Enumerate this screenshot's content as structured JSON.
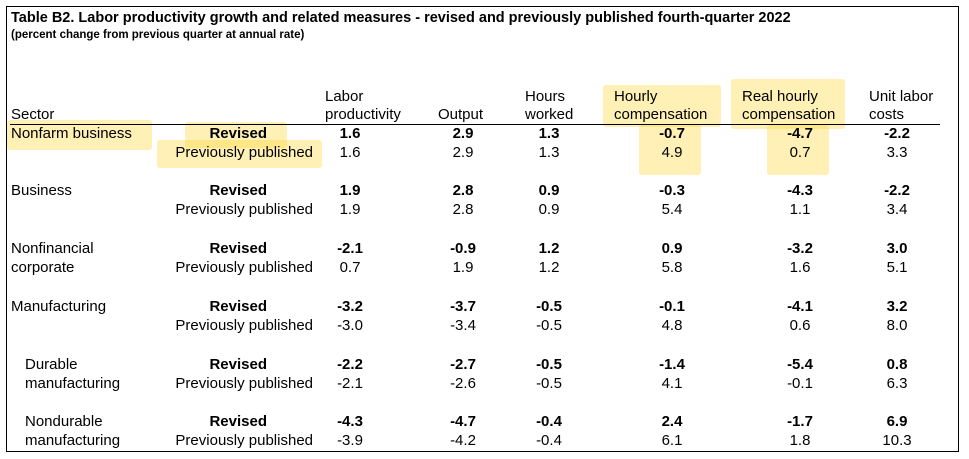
{
  "table": {
    "title": "Table B2. Labor productivity growth and related measures - revised and previously published fourth-quarter 2022",
    "subtitle": "(percent change from previous quarter at annual rate)",
    "columns": {
      "sector": "Sector",
      "labor_productivity": [
        "Labor",
        "productivity"
      ],
      "output": "Output",
      "hours_worked": [
        "Hours",
        "worked"
      ],
      "hourly_compensation": [
        "Hourly",
        "compensation"
      ],
      "real_hourly_compensation": [
        "Real hourly",
        "compensation"
      ],
      "unit_labor_costs": [
        "Unit labor",
        "costs"
      ]
    },
    "row_labels": {
      "revised": "Revised",
      "previous": "Previously published"
    },
    "sectors": [
      {
        "name": [
          "Nonfarm business"
        ],
        "revised": [
          "1.6",
          "2.9",
          "1.3",
          "-0.7",
          "-4.7",
          "-2.2"
        ],
        "previous": [
          "1.6",
          "2.9",
          "1.3",
          "4.9",
          "0.7",
          "3.3"
        ]
      },
      {
        "name": [
          "Business"
        ],
        "revised": [
          "1.9",
          "2.8",
          "0.9",
          "-0.3",
          "-4.3",
          "-2.2"
        ],
        "previous": [
          "1.9",
          "2.8",
          "0.9",
          "5.4",
          "1.1",
          "3.4"
        ]
      },
      {
        "name": [
          "Nonfinancial",
          "corporate"
        ],
        "revised": [
          "-2.1",
          "-0.9",
          "1.2",
          "0.9",
          "-3.2",
          "3.0"
        ],
        "previous": [
          "0.7",
          "1.9",
          "1.2",
          "5.8",
          "1.6",
          "5.1"
        ]
      },
      {
        "name": [
          "Manufacturing"
        ],
        "revised": [
          "-3.2",
          "-3.7",
          "-0.5",
          "-0.1",
          "-4.1",
          "3.2"
        ],
        "previous": [
          "-3.0",
          "-3.4",
          "-0.5",
          "4.8",
          "0.6",
          "8.0"
        ]
      },
      {
        "name": [
          "Durable",
          "manufacturing"
        ],
        "revised": [
          "-2.2",
          "-2.7",
          "-0.5",
          "-1.4",
          "-5.4",
          "0.8"
        ],
        "previous": [
          "-2.1",
          "-2.6",
          "-0.5",
          "4.1",
          "-0.1",
          "6.3"
        ]
      },
      {
        "name": [
          "Nondurable",
          "manufacturing"
        ],
        "revised": [
          "-4.3",
          "-4.7",
          "-0.4",
          "2.4",
          "-1.7",
          "6.9"
        ],
        "previous": [
          "-3.9",
          "-4.2",
          "-0.4",
          "6.1",
          "1.8",
          "10.3"
        ]
      }
    ]
  },
  "highlight_color": "#ffd83c"
}
